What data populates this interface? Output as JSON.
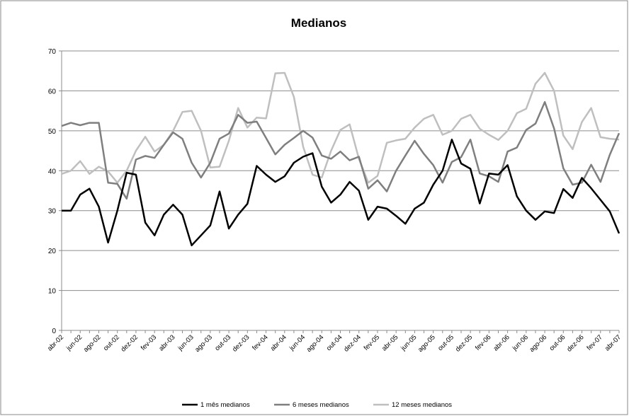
{
  "chart_data": {
    "type": "line",
    "title": "Medianos",
    "categories": [
      "abr-02",
      null,
      "jun-02",
      null,
      "ago-02",
      null,
      "out-02",
      null,
      "dez-02",
      null,
      "fev-03",
      null,
      "abr-03",
      null,
      "jun-03",
      null,
      "ago-03",
      null,
      "out-03",
      null,
      "dez-03",
      null,
      "fev-04",
      null,
      "abr-04",
      null,
      "jun-04",
      null,
      "ago-04",
      null,
      "out-04",
      null,
      "dez-04",
      null,
      "fev-05",
      null,
      "abr-05",
      null,
      "jun-05",
      null,
      "ago-05",
      null,
      "out-05",
      null,
      "dez-05",
      null,
      "fev-06",
      null,
      "abr-06",
      null,
      "jun-06",
      null,
      "ago-06",
      null,
      "out-06",
      null,
      "dez-06",
      null,
      "fev-07",
      null,
      "abr-07"
    ],
    "series": [
      {
        "name": "1 mês medianos",
        "color": "#000000",
        "values": [
          30,
          30,
          34,
          35.5,
          31,
          22,
          30,
          39.5,
          39,
          27,
          23.8,
          29,
          31.5,
          29,
          21.3,
          23.8,
          26.3,
          34.8,
          25.5,
          29,
          31.7,
          41.2,
          39,
          37.2,
          38.6,
          42,
          43.5,
          44.4,
          36,
          32,
          34,
          37.2,
          35,
          27.7,
          31,
          30.5,
          28.7,
          26.7,
          30.5,
          32,
          36.5,
          40,
          47.8,
          41.8,
          40.5,
          31.8,
          39.3,
          39,
          41.4,
          33.6,
          30,
          27.7,
          29.8,
          29.4,
          35.4,
          33.2,
          38.2,
          35.6,
          32.7,
          29.8,
          24.3
        ]
      },
      {
        "name": "6 meses medianos",
        "color": "#7f7f7f",
        "values": [
          51.2,
          52,
          51.4,
          52,
          52,
          37,
          36.7,
          33,
          42.8,
          43.7,
          43.2,
          46.5,
          49.6,
          48,
          42,
          38.3,
          42,
          48,
          49.3,
          54,
          52,
          52.3,
          48.2,
          44.1,
          46.5,
          48.2,
          50,
          48.3,
          43.8,
          43,
          44.8,
          42.6,
          43.5,
          35.5,
          37.6,
          34.8,
          40,
          43.8,
          47.5,
          44.2,
          41.4,
          37,
          42.2,
          43.4,
          47.8,
          39.3,
          38.6,
          37.2,
          44.8,
          45.8,
          50.2,
          51.8,
          57.2,
          50.6,
          40.6,
          36.5,
          37,
          41.5,
          37.2,
          44,
          49.4
        ]
      },
      {
        "name": "12 meses medianos",
        "color": "#bfbfbf",
        "values": [
          39.2,
          40,
          42.4,
          39.2,
          41,
          39.8,
          37,
          40,
          45,
          48.5,
          44.8,
          46.5,
          50,
          54.7,
          55,
          50,
          40.8,
          41,
          47.5,
          55.7,
          50.8,
          53.3,
          53.1,
          64.4,
          64.5,
          58.5,
          46,
          39,
          38.3,
          45,
          50.2,
          51.6,
          43,
          37,
          38.7,
          47,
          47.6,
          48,
          50.8,
          53,
          54,
          49,
          50,
          53,
          54,
          50.5,
          49,
          47.7,
          50,
          54.4,
          55.5,
          61.8,
          64.5,
          60,
          48.8,
          45.4,
          52.2,
          55.7,
          48.4,
          48,
          47.8
        ]
      }
    ],
    "ylim": [
      0,
      70
    ],
    "yticks": [
      0,
      10,
      20,
      30,
      40,
      50,
      60,
      70
    ],
    "grid": true,
    "legend": "bottom"
  }
}
